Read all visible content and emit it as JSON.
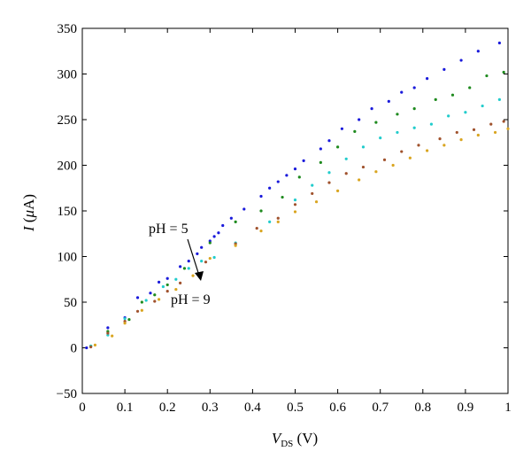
{
  "chart_data": {
    "type": "scatter",
    "title": "",
    "xlabel": {
      "main": "V",
      "sub": "DS",
      "unit": " (V)"
    },
    "ylabel": {
      "main": "I",
      "unit_open": " (",
      "mu": "μ",
      "unit_close": "A)"
    },
    "xlim": [
      0,
      1
    ],
    "ylim": [
      -50,
      350
    ],
    "x_ticks": [
      0,
      0.1,
      0.2,
      0.3,
      0.4,
      0.5,
      0.6,
      0.7,
      0.8,
      0.9,
      1
    ],
    "x_tick_labels": [
      "0",
      "0.1",
      "0.2",
      "0.3",
      "0.4",
      "0.5",
      "0.6",
      "0.7",
      "0.8",
      "0.9",
      "1"
    ],
    "y_ticks": [
      -50,
      0,
      50,
      100,
      150,
      200,
      250,
      300,
      350
    ],
    "y_tick_labels": [
      "−50",
      "0",
      "50",
      "100",
      "150",
      "200",
      "250",
      "300",
      "350"
    ],
    "grid": false,
    "annotations": {
      "top": "pH = 5",
      "bottom": "pH = 9"
    },
    "series": [
      {
        "color": "#1a1adb",
        "x": [
          0.01,
          0.06,
          0.1,
          0.13,
          0.16,
          0.18,
          0.2,
          0.23,
          0.25,
          0.27,
          0.28,
          0.3,
          0.31,
          0.32,
          0.33,
          0.35,
          0.38,
          0.42,
          0.44,
          0.46,
          0.48,
          0.5,
          0.52,
          0.56,
          0.58,
          0.61,
          0.65,
          0.68,
          0.72,
          0.75,
          0.78,
          0.81,
          0.85,
          0.89,
          0.93,
          0.98
        ],
        "y": [
          0,
          22,
          33,
          55,
          60,
          72,
          76,
          89,
          95,
          103,
          110,
          117,
          122,
          126,
          134,
          142,
          152,
          166,
          175,
          182,
          189,
          196,
          205,
          218,
          227,
          240,
          250,
          262,
          270,
          280,
          285,
          295,
          305,
          315,
          325,
          334
        ]
      },
      {
        "color": "#1e8a1e",
        "x": [
          0.02,
          0.06,
          0.11,
          0.14,
          0.17,
          0.2,
          0.24,
          0.3,
          0.36,
          0.42,
          0.47,
          0.51,
          0.56,
          0.6,
          0.64,
          0.69,
          0.74,
          0.78,
          0.83,
          0.87,
          0.91,
          0.95,
          0.99
        ],
        "y": [
          2,
          18,
          31,
          50,
          58,
          69,
          87,
          115,
          138,
          150,
          165,
          187,
          203,
          220,
          237,
          247,
          256,
          262,
          272,
          277,
          285,
          298,
          302
        ]
      },
      {
        "color": "#22cccc",
        "x": [
          0.02,
          0.06,
          0.1,
          0.15,
          0.19,
          0.22,
          0.25,
          0.28,
          0.31,
          0.36,
          0.44,
          0.5,
          0.54,
          0.58,
          0.62,
          0.66,
          0.7,
          0.74,
          0.78,
          0.82,
          0.86,
          0.9,
          0.94,
          0.98
        ],
        "y": [
          2,
          14,
          32,
          52,
          67,
          75,
          87,
          95,
          99,
          115,
          138,
          162,
          178,
          192,
          207,
          220,
          230,
          236,
          241,
          245,
          254,
          258,
          265,
          272
        ]
      },
      {
        "color": "#a0522d",
        "x": [
          0.02,
          0.06,
          0.1,
          0.13,
          0.17,
          0.2,
          0.23,
          0.29,
          0.36,
          0.41,
          0.46,
          0.5,
          0.54,
          0.58,
          0.62,
          0.66,
          0.71,
          0.75,
          0.79,
          0.84,
          0.88,
          0.92,
          0.96,
          0.99
        ],
        "y": [
          1,
          16,
          29,
          40,
          51,
          62,
          71,
          94,
          114,
          131,
          142,
          157,
          169,
          181,
          191,
          198,
          206,
          215,
          222,
          229,
          236,
          239,
          245,
          248
        ]
      },
      {
        "color": "#d9a520",
        "x": [
          0.03,
          0.07,
          0.1,
          0.14,
          0.18,
          0.22,
          0.26,
          0.3,
          0.36,
          0.42,
          0.46,
          0.5,
          0.55,
          0.6,
          0.65,
          0.69,
          0.73,
          0.77,
          0.81,
          0.85,
          0.89,
          0.93,
          0.97,
          1.0
        ],
        "y": [
          3,
          13,
          27,
          41,
          53,
          64,
          79,
          98,
          112,
          128,
          138,
          149,
          160,
          172,
          184,
          193,
          200,
          208,
          216,
          222,
          228,
          233,
          236,
          240
        ]
      }
    ]
  }
}
